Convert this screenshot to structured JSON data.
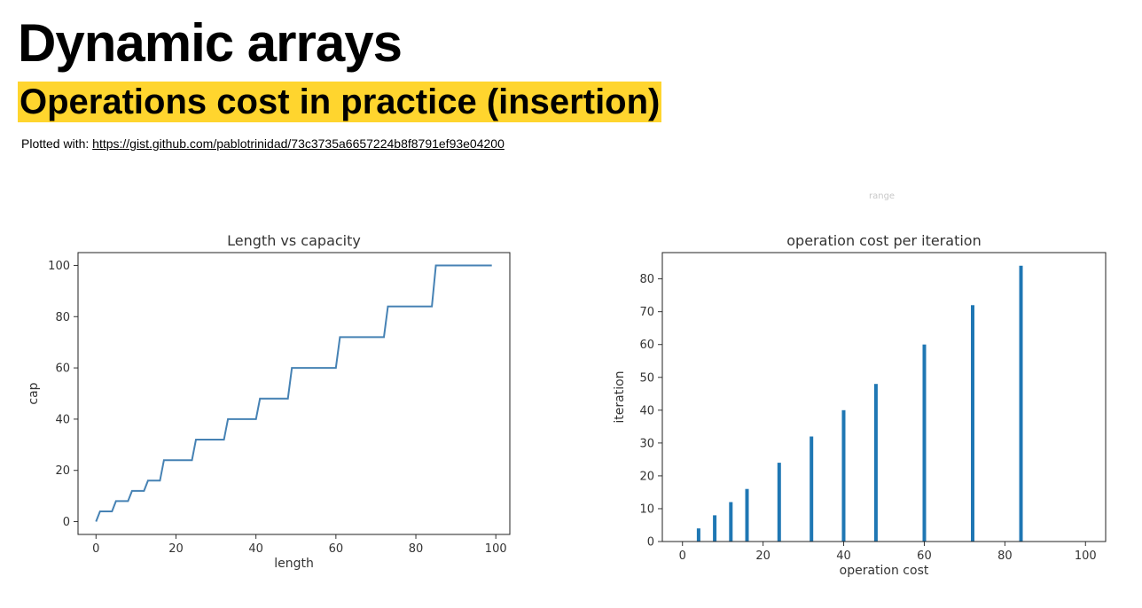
{
  "header": {
    "title": "Dynamic arrays",
    "subtitle": "Operations cost in practice (insertion)",
    "plotted_prefix": "Plotted with:",
    "plotted_link": "https://gist.github.com/pablotrinidad/73c3735a6657224b8f8791ef93e04200",
    "stray_text": "range"
  },
  "chart_data": [
    {
      "type": "line",
      "title": "Length vs capacity",
      "xlabel": "length",
      "ylabel": "cap",
      "xlim": [
        -4.5,
        103.5
      ],
      "ylim": [
        -5,
        105
      ],
      "xticks": [
        0,
        20,
        40,
        60,
        80,
        100
      ],
      "yticks": [
        0,
        20,
        40,
        60,
        80,
        100
      ],
      "capacity_levels": [
        0,
        4,
        8,
        12,
        16,
        24,
        32,
        40,
        48,
        60,
        72,
        84,
        100
      ],
      "x_range": [
        0,
        99
      ],
      "color": "#4682b4"
    },
    {
      "type": "bar",
      "title": "operation cost per iteration",
      "xlabel": "operation cost",
      "ylabel": "iteration",
      "xlim": [
        -5,
        105
      ],
      "ylim": [
        0,
        88
      ],
      "xticks": [
        0,
        20,
        40,
        60,
        80,
        100
      ],
      "yticks": [
        0,
        10,
        20,
        30,
        40,
        50,
        60,
        70,
        80
      ],
      "categories": [
        4,
        8,
        12,
        16,
        24,
        32,
        40,
        48,
        60,
        72,
        84
      ],
      "values": [
        4,
        8,
        12,
        16,
        24,
        32,
        40,
        48,
        60,
        72,
        84
      ],
      "color": "#1f77b4"
    }
  ]
}
